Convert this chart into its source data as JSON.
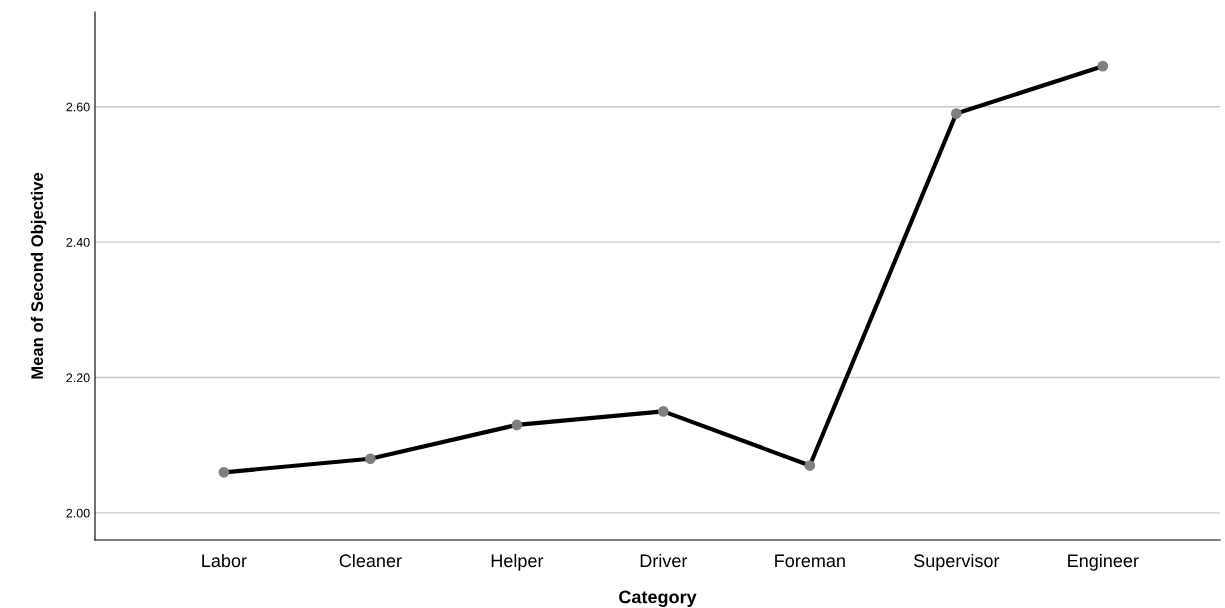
{
  "chart_data": {
    "type": "line",
    "xlabel": "Category",
    "ylabel": "Mean of Second Objective",
    "categories": [
      "Labor",
      "Cleaner",
      "Helper",
      "Driver",
      "Foreman",
      "Supervisor",
      "Engineer"
    ],
    "series": [
      {
        "color": "#000000",
        "values": [
          2.06,
          2.08,
          2.13,
          2.15,
          2.07,
          2.59,
          2.66
        ]
      },
      {
        "type": "scatter",
        "marker": "circle",
        "color": "#7f7f7f",
        "values": [
          2.06,
          2.08,
          2.13,
          2.15,
          2.07,
          2.59,
          2.66
        ]
      }
    ],
    "ylim": [
      1.96,
      2.74
    ],
    "yticks": [
      {
        "value": 2.0,
        "label": "2.00"
      },
      {
        "value": 2.2,
        "label": "2.20"
      },
      {
        "value": 2.4,
        "label": "2.40"
      },
      {
        "value": 2.6,
        "label": "2.60"
      }
    ],
    "grid": "y",
    "line_style": "solid"
  }
}
